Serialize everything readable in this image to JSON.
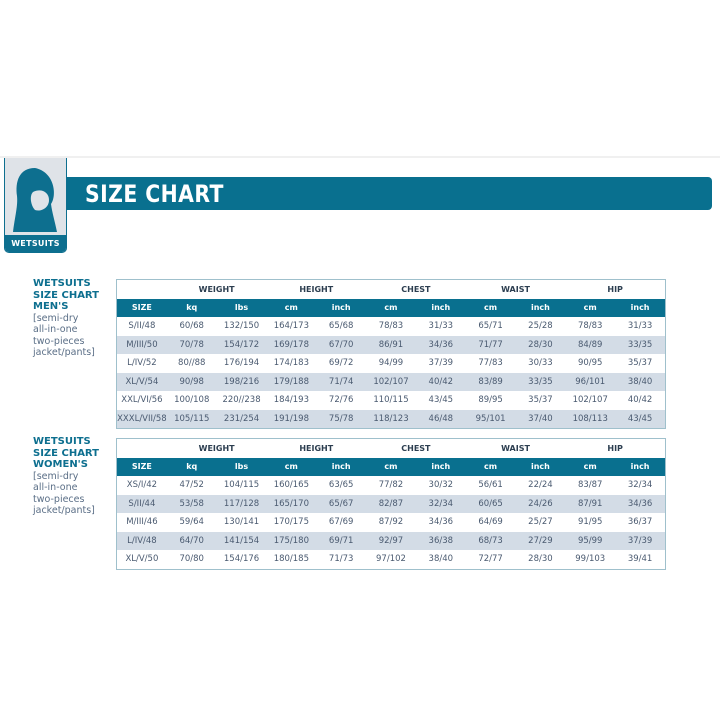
{
  "header": {
    "title": "SIZE CHART",
    "badge_label": "WETSUITS",
    "badge_icon": "hood-icon",
    "accent": "#09708f"
  },
  "column_groups": [
    "WEIGHT",
    "HEIGHT",
    "CHEST",
    "WAIST",
    "HIP"
  ],
  "columns": [
    "SIZE",
    "kq",
    "lbs",
    "cm",
    "inch",
    "cm",
    "inch",
    "cm",
    "inch",
    "cm",
    "inch"
  ],
  "men": {
    "title_lines": [
      "WETSUITS",
      "SIZE CHART",
      "MEN'S"
    ],
    "sub_lines": [
      "[semi-dry",
      "all-in-one",
      "two-pieces",
      "jacket/pants]"
    ],
    "rows": [
      [
        "S/II/48",
        "60/68",
        "132/150",
        "164/173",
        "65/68",
        "78/83",
        "31/33",
        "65/71",
        "25/28",
        "78/83",
        "31/33"
      ],
      [
        "M/III/50",
        "70/78",
        "154/172",
        "169/178",
        "67/70",
        "86/91",
        "34/36",
        "71/77",
        "28/30",
        "84/89",
        "33/35"
      ],
      [
        "L/IV/52",
        "80//88",
        "176/194",
        "174/183",
        "69/72",
        "94/99",
        "37/39",
        "77/83",
        "30/33",
        "90/95",
        "35/37"
      ],
      [
        "XL/V/54",
        "90/98",
        "198/216",
        "179/188",
        "71/74",
        "102/107",
        "40/42",
        "83/89",
        "33/35",
        "96/101",
        "38/40"
      ],
      [
        "XXL/VI/56",
        "100/108",
        "220//238",
        "184/193",
        "72/76",
        "110/115",
        "43/45",
        "89/95",
        "35/37",
        "102/107",
        "40/42"
      ],
      [
        "XXXL/VII/58",
        "105/115",
        "231/254",
        "191/198",
        "75/78",
        "118/123",
        "46/48",
        "95/101",
        "37/40",
        "108/113",
        "43/45"
      ]
    ]
  },
  "women": {
    "title_lines": [
      "WETSUITS",
      "SIZE CHART",
      "WOMEN'S"
    ],
    "sub_lines": [
      "[semi-dry",
      "all-in-one",
      "two-pieces",
      "jacket/pants]"
    ],
    "rows": [
      [
        "XS/I/42",
        "47/52",
        "104/115",
        "160/165",
        "63/65",
        "77/82",
        "30/32",
        "56/61",
        "22/24",
        "83/87",
        "32/34"
      ],
      [
        "S/II/44",
        "53/58",
        "117/128",
        "165/170",
        "65/67",
        "82/87",
        "32/34",
        "60/65",
        "24/26",
        "87/91",
        "34/36"
      ],
      [
        "M/III/46",
        "59/64",
        "130/141",
        "170/175",
        "67/69",
        "87/92",
        "34/36",
        "64/69",
        "25/27",
        "91/95",
        "36/37"
      ],
      [
        "L/IV/48",
        "64/70",
        "141/154",
        "175/180",
        "69/71",
        "92/97",
        "36/38",
        "68/73",
        "27/29",
        "95/99",
        "37/39"
      ],
      [
        "XL/V/50",
        "70/80",
        "154/176",
        "180/185",
        "71/73",
        "97/102",
        "38/40",
        "72/77",
        "28/30",
        "99/103",
        "39/41"
      ]
    ]
  }
}
